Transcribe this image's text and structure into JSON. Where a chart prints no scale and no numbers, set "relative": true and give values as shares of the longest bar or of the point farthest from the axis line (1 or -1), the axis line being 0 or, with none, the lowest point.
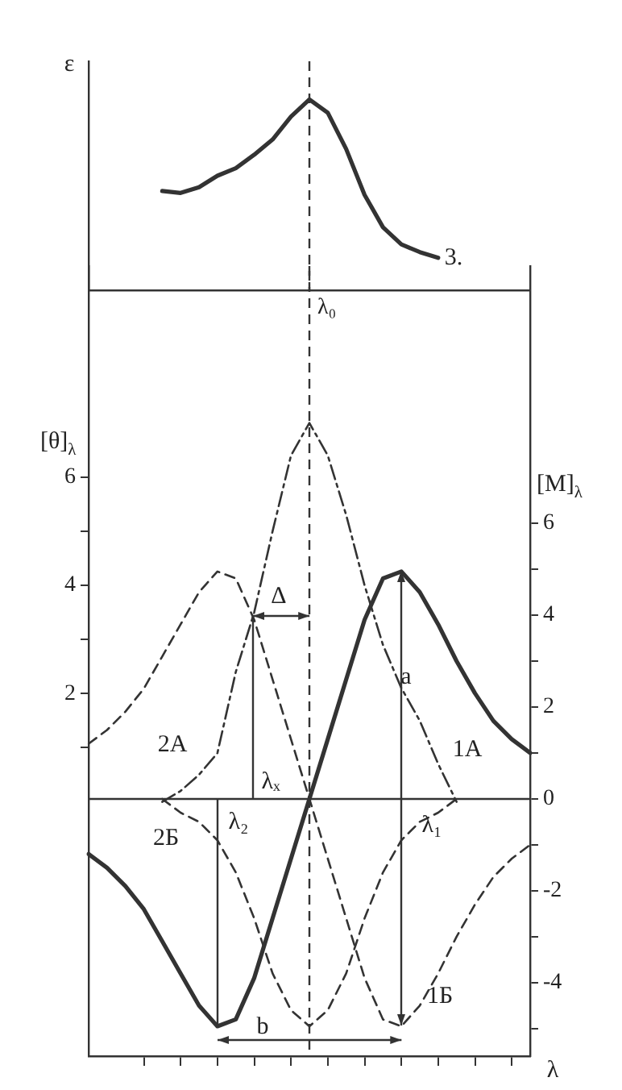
{
  "chart_data": [
    {
      "type": "line",
      "relative": true,
      "ylabel": "ε",
      "grid": false,
      "legend": false,
      "marker": "none",
      "categories": [
        null,
        null,
        null,
        null,
        null,
        null,
        null,
        null,
        null,
        null,
        null,
        null,
        null,
        null,
        null,
        null,
        null,
        null,
        null,
        null,
        null,
        null,
        null,
        null,
        null
      ],
      "series": [
        {
          "color": "#333333",
          "line_style": "solid",
          "values": [
            null,
            null,
            null,
            null,
            0.52,
            0.51,
            0.54,
            0.6,
            0.64,
            0.71,
            0.79,
            0.91,
            1.0,
            0.93,
            0.74,
            0.5,
            0.33,
            0.24,
            0.2,
            0.17,
            null,
            null,
            null,
            null,
            null
          ]
        }
      ],
      "annotations": [
        "3."
      ],
      "ref_lines": [
        {
          "axis": "x",
          "label": "λ₀",
          "line_style": "dashed"
        }
      ]
    },
    {
      "type": "line",
      "ylabel": "[θ]$_{λ}$",
      "y2label": "[M]$_{λ}$",
      "xlabel": "λ",
      "grid": false,
      "legend": false,
      "marker": "none",
      "categories": [
        null,
        null,
        null,
        null,
        null,
        null,
        null,
        null,
        null,
        null,
        null,
        null,
        null,
        null,
        null,
        null,
        null,
        null,
        null,
        null,
        null,
        null,
        null,
        null,
        null
      ],
      "ylim": [
        -4.7,
        9.9
      ],
      "yticks": [
        {
          "value": 1,
          "label": null
        },
        2,
        {
          "value": 3,
          "label": null
        },
        4,
        {
          "value": 5,
          "label": null
        },
        6
      ],
      "y2lim": [
        -5.6,
        11.6
      ],
      "y2ticks": [
        {
          "value": -5,
          "label": null
        },
        -4,
        {
          "value": -3,
          "label": null
        },
        -2,
        {
          "value": -1,
          "label": null
        },
        0,
        {
          "value": 1,
          "label": null
        },
        2,
        {
          "value": 3,
          "label": null
        },
        4,
        {
          "value": 5,
          "label": null
        },
        6
      ],
      "series": [
        {
          "color": "#333333",
          "line_style": "solid",
          "axis": "y2",
          "values": [
            -1.2,
            -1.5,
            -1.9,
            -2.4,
            -3.1,
            -3.8,
            -4.5,
            -4.95,
            -4.8,
            -3.9,
            -2.6,
            -1.3,
            0,
            1.3,
            2.6,
            3.9,
            4.8,
            4.95,
            4.5,
            3.8,
            3.0,
            2.3,
            1.7,
            1.3,
            1.0
          ]
        },
        {
          "color": "#333333",
          "line_style": "dashed",
          "axis": "y2",
          "values": [
            1.2,
            1.5,
            1.9,
            2.4,
            3.1,
            3.8,
            4.5,
            4.95,
            4.8,
            3.9,
            2.6,
            1.3,
            0,
            -1.3,
            -2.6,
            -3.9,
            -4.8,
            -4.95,
            -4.5,
            -3.8,
            -3.0,
            -2.3,
            -1.7,
            -1.3,
            -1.0
          ]
        },
        {
          "color": "#333333",
          "line_style": "dashed",
          "axis": "y2",
          "values": [
            null,
            null,
            null,
            null,
            0,
            -0.3,
            -0.5,
            -0.9,
            -1.6,
            -2.6,
            -3.8,
            -4.6,
            -4.95,
            -4.6,
            -3.8,
            -2.6,
            -1.6,
            -0.9,
            -0.5,
            -0.3,
            0,
            null,
            null,
            null,
            null
          ]
        },
        {
          "color": "#333333",
          "line_style": "dashdot",
          "values": [
            null,
            null,
            null,
            null,
            0,
            0.2,
            0.5,
            0.9,
            2.4,
            3.5,
            5.0,
            6.4,
            7.0,
            6.4,
            5.3,
            4.0,
            2.9,
            2.1,
            1.5,
            0.7,
            0,
            null,
            null,
            null,
            null
          ]
        }
      ],
      "annotations": [
        "2A",
        "1A",
        "2Б",
        "1Б",
        "λₓ",
        "λ₂",
        "λ₁",
        "Δ",
        "a",
        "b"
      ],
      "ref_lines": [
        {
          "axis": "x",
          "line_style": "dashed"
        },
        {
          "axis": "y2",
          "value": 0
        }
      ]
    }
  ]
}
